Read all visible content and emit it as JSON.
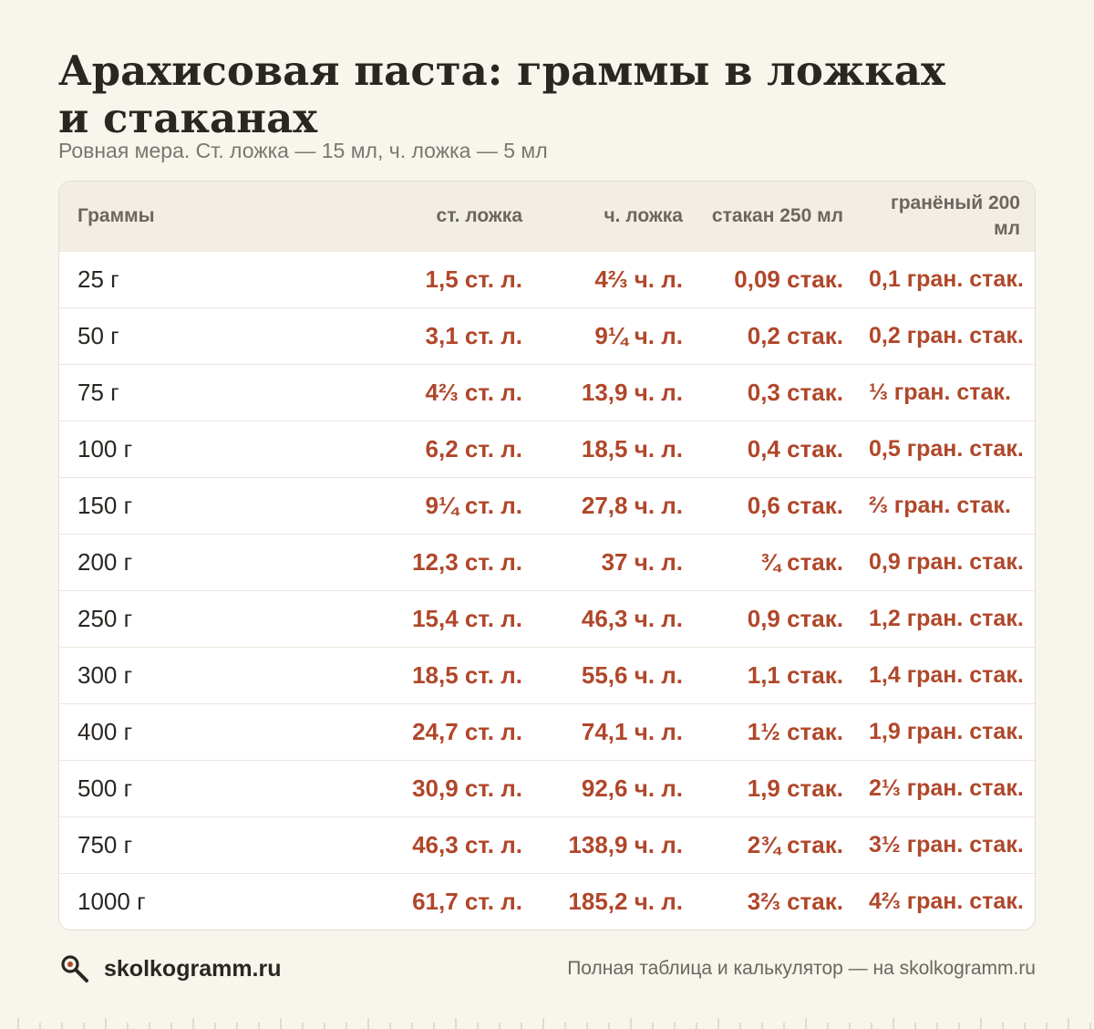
{
  "header": {
    "title": "Арахисовая паста: граммы в ложках и стаканах",
    "subtitle": "Ровная мера. Ст. ложка — 15 мл, ч. ложка — 5 мл"
  },
  "table": {
    "columns": [
      "Граммы",
      "ст. ложка",
      "ч. ложка",
      "стакан 250 мл",
      "гранёный 200 мл"
    ],
    "rows": [
      [
        "25 г",
        "1,5 ст. л.",
        "4⅔ ч. л.",
        "0,09 стак.",
        "0,1 гран. стак."
      ],
      [
        "50 г",
        "3,1 ст. л.",
        "9¼ ч. л.",
        "0,2 стак.",
        "0,2 гран. стак."
      ],
      [
        "75 г",
        "4⅔ ст. л.",
        "13,9 ч. л.",
        "0,3 стак.",
        "⅓ гран. стак."
      ],
      [
        "100 г",
        "6,2 ст. л.",
        "18,5 ч. л.",
        "0,4 стак.",
        "0,5 гран. стак."
      ],
      [
        "150 г",
        "9¼ ст. л.",
        "27,8 ч. л.",
        "0,6 стак.",
        "⅔ гран. стак."
      ],
      [
        "200 г",
        "12,3 ст. л.",
        "37 ч. л.",
        "¾ стак.",
        "0,9 гран. стак."
      ],
      [
        "250 г",
        "15,4 ст. л.",
        "46,3 ч. л.",
        "0,9 стак.",
        "1,2 гран. стак."
      ],
      [
        "300 г",
        "18,5 ст. л.",
        "55,6 ч. л.",
        "1,1 стак.",
        "1,4 гран. стак."
      ],
      [
        "400 г",
        "24,7 ст. л.",
        "74,1 ч. л.",
        "1½ стак.",
        "1,9 гран. стак."
      ],
      [
        "500 г",
        "30,9 ст. л.",
        "92,6 ч. л.",
        "1,9 стак.",
        "2⅓ гран. стак."
      ],
      [
        "750 г",
        "46,3 ст. л.",
        "138,9 ч. л.",
        "2¾ стак.",
        "3½ гран. стак."
      ],
      [
        "1000 г",
        "61,7 ст. л.",
        "185,2 ч. л.",
        "3⅔ стак.",
        "4⅔ гран. стак."
      ]
    ]
  },
  "footer": {
    "brand": "skolkogramm.ru",
    "brand_icon": "magnifier-icon",
    "note": "Полная таблица и калькулятор — на skolkogramm.ru"
  },
  "colors": {
    "background": "#f8f5ec",
    "accent": "#b0472a",
    "header_row": "#f2eee4"
  }
}
